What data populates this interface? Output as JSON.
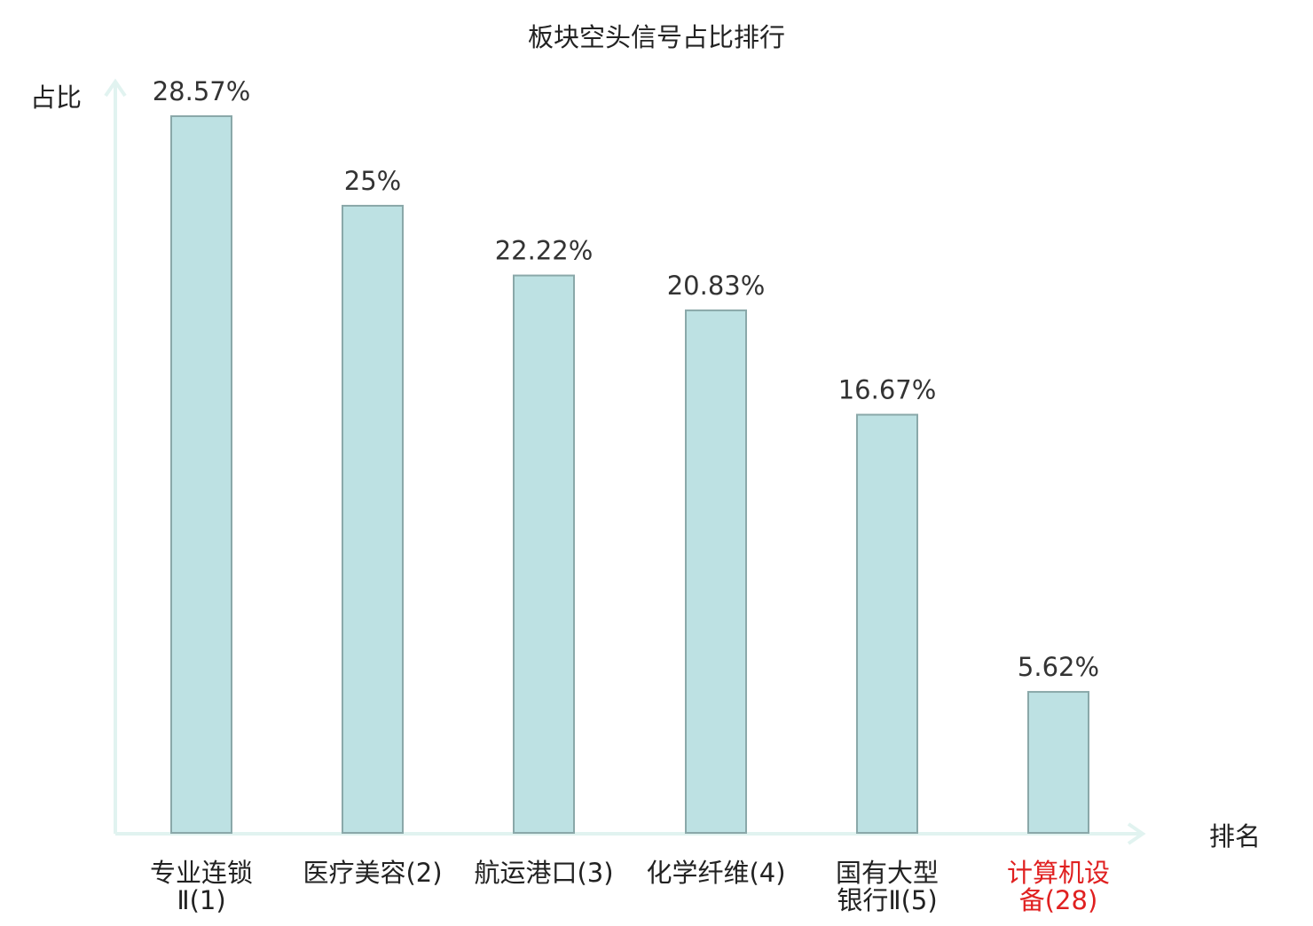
{
  "colors": {
    "bar_fill": "#bde1e3",
    "bar_stroke": "#8aa8a9",
    "axis": "#e1f3f0",
    "text": "#222222",
    "highlight": "#e02020"
  },
  "chart_data": {
    "type": "bar",
    "title": "板块空头信号占比排行",
    "ylabel": "占比",
    "xlabel": "排名",
    "ylim": [
      0,
      30
    ],
    "grid": false,
    "categories": [
      {
        "line1": "专业连锁",
        "line2": "Ⅱ(1)",
        "highlight": false
      },
      {
        "line1": "医疗美容(2)",
        "line2": "",
        "highlight": false
      },
      {
        "line1": "航运港口(3)",
        "line2": "",
        "highlight": false
      },
      {
        "line1": "化学纤维(4)",
        "line2": "",
        "highlight": false
      },
      {
        "line1": "国有大型",
        "line2": "银行Ⅱ(5)",
        "highlight": false
      },
      {
        "line1": "计算机设",
        "line2": "备(28)",
        "highlight": true
      }
    ],
    "values": [
      28.57,
      25,
      22.22,
      20.83,
      16.67,
      5.62
    ],
    "value_labels": [
      "28.57%",
      "25%",
      "22.22%",
      "20.83%",
      "16.67%",
      "5.62%"
    ]
  }
}
